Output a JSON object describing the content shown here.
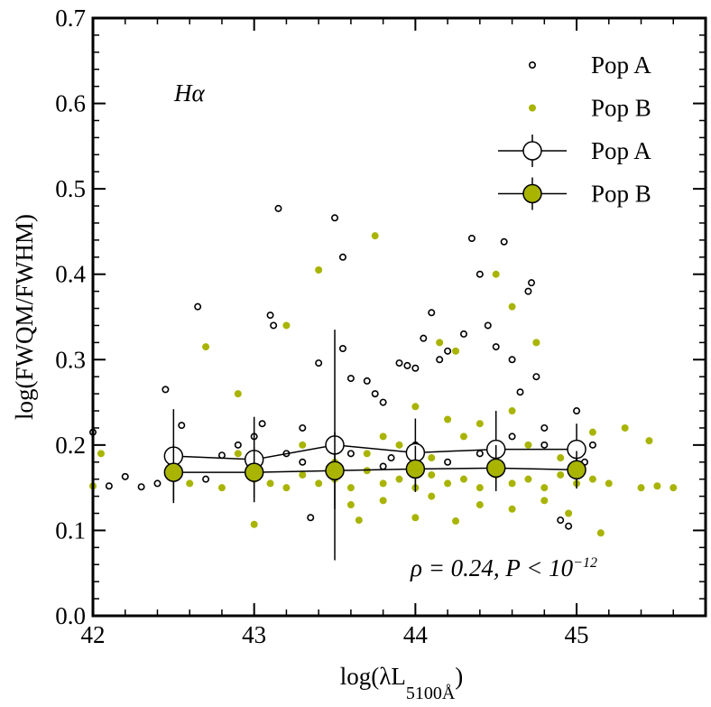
{
  "chart_data": {
    "type": "scatter",
    "xlabel": {
      "main": "log(λL",
      "sub": "5100Å",
      "close": ")"
    },
    "ylabel": "log(FWQM/FWHM)",
    "annotations": {
      "line": "Hα",
      "stat": {
        "text": "ρ = 0.24, P < 10",
        "sup": "−12"
      }
    },
    "xlim": [
      42,
      45.8
    ],
    "ylim": [
      0,
      0.7
    ],
    "xticks": [
      42,
      43,
      44,
      45
    ],
    "yticks": [
      {
        "value": 0,
        "label": "0.0"
      },
      0.1,
      0.2,
      0.3,
      0.4,
      0.5,
      0.6,
      0.7
    ],
    "xminorticks": [
      42.2,
      42.4,
      42.6,
      42.8,
      43.2,
      43.4,
      43.6,
      43.8,
      44.2,
      44.4,
      44.6,
      44.8,
      45.2,
      45.4,
      45.6
    ],
    "yminorticks": [
      0.02,
      0.04,
      0.06,
      0.08,
      0.12,
      0.14,
      0.16,
      0.18,
      0.22,
      0.24,
      0.26,
      0.28,
      0.32,
      0.34,
      0.36,
      0.38,
      0.42,
      0.44,
      0.46,
      0.48,
      0.52,
      0.54,
      0.56,
      0.58,
      0.62,
      0.64,
      0.66,
      0.68
    ],
    "legend": "upper right",
    "series": [
      {
        "name": "Pop A",
        "kind": "points",
        "marker": "open",
        "color": "#000000",
        "x": [
          42.0,
          42.1,
          42.2,
          42.3,
          42.4,
          42.45,
          42.55,
          42.65,
          42.7,
          42.8,
          42.9,
          43.0,
          43.05,
          43.1,
          43.12,
          43.15,
          43.2,
          43.3,
          43.35,
          43.4,
          43.5,
          43.55,
          43.55,
          43.6,
          43.7,
          43.75,
          43.8,
          43.85,
          43.9,
          43.95,
          44.0,
          44.05,
          44.1,
          44.15,
          44.2,
          44.3,
          44.35,
          44.4,
          44.45,
          44.5,
          44.55,
          44.6,
          44.65,
          44.7,
          44.72,
          44.75,
          44.8,
          44.9,
          45.0,
          45.1,
          43.3,
          43.6,
          43.8,
          44.0,
          44.2,
          44.4,
          44.6,
          44.8,
          44.95,
          45.05
        ],
        "values": [
          0.215,
          0.152,
          0.163,
          0.151,
          0.155,
          0.265,
          0.223,
          0.362,
          0.16,
          0.188,
          0.2,
          0.21,
          0.225,
          0.352,
          0.34,
          0.477,
          0.19,
          0.22,
          0.115,
          0.296,
          0.466,
          0.313,
          0.42,
          0.278,
          0.275,
          0.26,
          0.25,
          0.185,
          0.296,
          0.293,
          0.29,
          0.325,
          0.355,
          0.3,
          0.31,
          0.33,
          0.442,
          0.4,
          0.34,
          0.315,
          0.438,
          0.3,
          0.262,
          0.38,
          0.39,
          0.28,
          0.2,
          0.112,
          0.24,
          0.2,
          0.18,
          0.19,
          0.175,
          0.2,
          0.18,
          0.19,
          0.21,
          0.22,
          0.105,
          0.18
        ]
      },
      {
        "name": "Pop B",
        "kind": "points",
        "marker": "filled",
        "color": "#a8b400",
        "x": [
          42.05,
          42.0,
          42.7,
          42.9,
          43.0,
          43.2,
          43.4,
          43.75,
          43.65,
          44.0,
          44.25,
          44.15,
          44.25,
          44.5,
          44.6,
          44.75,
          44.95,
          45.15,
          45.3,
          45.45,
          45.6,
          45.5,
          45.4,
          45.2,
          42.6,
          42.8,
          43.0,
          43.1,
          43.2,
          43.3,
          43.4,
          43.5,
          43.6,
          43.7,
          43.8,
          43.9,
          44.0,
          44.1,
          44.2,
          44.3,
          44.4,
          44.5,
          44.6,
          44.7,
          44.8,
          44.9,
          45.0,
          45.1,
          43.5,
          43.7,
          43.9,
          44.1,
          44.3,
          44.5,
          44.7,
          44.9,
          45.1,
          44.2,
          44.4,
          44.6,
          43.6,
          43.8,
          44.1,
          44.4,
          44.6,
          44.8,
          42.9,
          43.3,
          43.8,
          44.0
        ],
        "values": [
          0.19,
          0.152,
          0.315,
          0.26,
          0.107,
          0.34,
          0.405,
          0.445,
          0.112,
          0.115,
          0.111,
          0.32,
          0.31,
          0.4,
          0.362,
          0.32,
          0.12,
          0.097,
          0.22,
          0.205,
          0.15,
          0.152,
          0.15,
          0.155,
          0.155,
          0.15,
          0.16,
          0.155,
          0.15,
          0.165,
          0.155,
          0.16,
          0.15,
          0.17,
          0.155,
          0.16,
          0.15,
          0.165,
          0.155,
          0.16,
          0.15,
          0.165,
          0.155,
          0.16,
          0.15,
          0.165,
          0.155,
          0.16,
          0.18,
          0.19,
          0.2,
          0.185,
          0.21,
          0.19,
          0.2,
          0.185,
          0.215,
          0.23,
          0.225,
          0.24,
          0.13,
          0.135,
          0.14,
          0.13,
          0.125,
          0.135,
          0.19,
          0.2,
          0.21,
          0.245
        ]
      },
      {
        "name": "Pop A",
        "kind": "binned",
        "marker": "open",
        "color": "#ffffff",
        "x": [
          42.5,
          43.0,
          43.5,
          44.0,
          44.5,
          45.0
        ],
        "values": [
          0.187,
          0.183,
          0.2,
          0.191,
          0.195,
          0.195
        ],
        "errors": [
          0.055,
          0.05,
          0.135,
          0.04,
          0.045,
          0.03
        ]
      },
      {
        "name": "Pop B",
        "kind": "binned",
        "marker": "filled",
        "color": "#a8b400",
        "x": [
          42.5,
          43.0,
          43.5,
          44.0,
          44.5,
          45.0
        ],
        "values": [
          0.168,
          0.168,
          0.17,
          0.172,
          0.173,
          0.171
        ],
        "errors": [
          0.033,
          0.03,
          0.045,
          0.027,
          0.027,
          0.022
        ]
      }
    ]
  }
}
